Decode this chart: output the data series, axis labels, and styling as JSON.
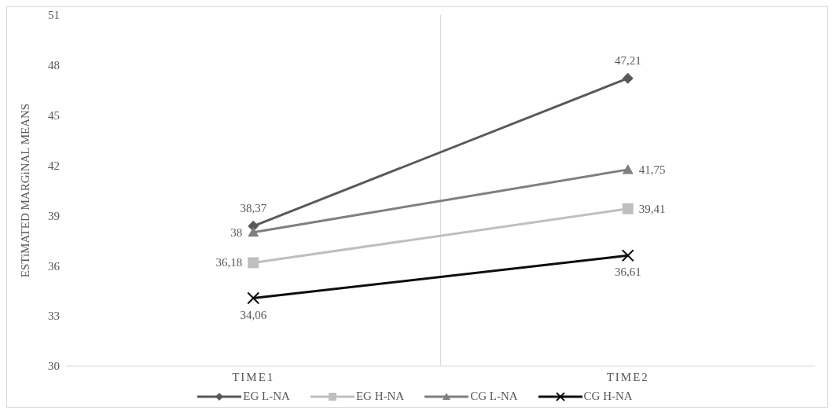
{
  "chart_data": {
    "type": "line",
    "ylabel": "ESTiMATED MARGiNAL MEANS",
    "categories": [
      "TIME1",
      "TIME2"
    ],
    "series": [
      {
        "name": "EG L-NA",
        "color": "#595959",
        "marker": "diamond",
        "values": [
          38.37,
          47.21
        ],
        "value_labels": [
          "38,37",
          "47,21"
        ]
      },
      {
        "name": "EG H-NA",
        "color": "#bfbfbf",
        "marker": "square",
        "values": [
          36.18,
          39.41
        ],
        "value_labels": [
          "36,18",
          "39,41"
        ]
      },
      {
        "name": "CG L-NA",
        "color": "#7f7f7f",
        "marker": "triangle",
        "values": [
          38,
          41.75
        ],
        "value_labels": [
          "38",
          "41,75"
        ]
      },
      {
        "name": "CG H-NA",
        "color": "#0d0d0d",
        "marker": "cross",
        "values": [
          34.06,
          36.61
        ],
        "value_labels": [
          "34,06",
          "36,61"
        ]
      }
    ],
    "ylim": [
      30,
      51
    ],
    "yticks": [
      30,
      33,
      36,
      39,
      42,
      45,
      48,
      51
    ],
    "grid": "x",
    "legend": "bottom",
    "line_style": "solid"
  }
}
